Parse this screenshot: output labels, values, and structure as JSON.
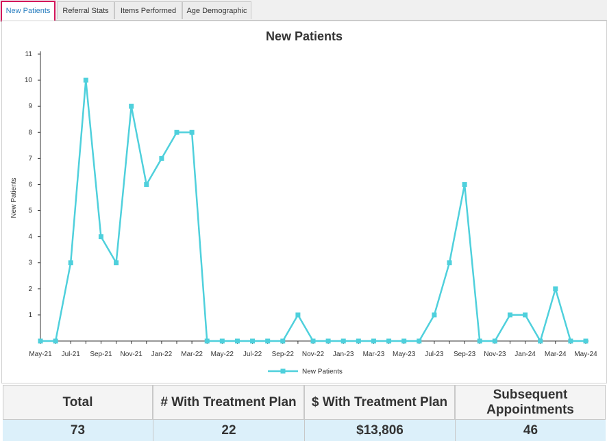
{
  "tabs": [
    {
      "label": "New Patients"
    },
    {
      "label": "Referral Stats"
    },
    {
      "label": "Items Performed"
    },
    {
      "label": "Age Demographic"
    }
  ],
  "chart_data": {
    "type": "line",
    "title": "New Patients",
    "ylabel": "New Patients",
    "xlabel": "",
    "ylim": [
      0,
      11
    ],
    "yticks": [
      1,
      2,
      3,
      4,
      5,
      6,
      7,
      8,
      9,
      10,
      11
    ],
    "x": [
      "May-21",
      "Jun-21",
      "Jul-21",
      "Aug-21",
      "Sep-21",
      "Oct-21",
      "Nov-21",
      "Dec-21",
      "Jan-22",
      "Feb-22",
      "Mar-22",
      "Apr-22",
      "May-22",
      "Jun-22",
      "Jul-22",
      "Aug-22",
      "Sep-22",
      "Oct-22",
      "Nov-22",
      "Dec-22",
      "Jan-23",
      "Feb-23",
      "Mar-23",
      "Apr-23",
      "May-23",
      "Jun-23",
      "Jul-23",
      "Aug-23",
      "Sep-23",
      "Oct-23",
      "Nov-23",
      "Dec-23",
      "Jan-24",
      "Feb-24",
      "Mar-24",
      "Apr-24",
      "May-24"
    ],
    "xtick_labels": [
      "May-21",
      "Jul-21",
      "Sep-21",
      "Nov-21",
      "Jan-22",
      "Mar-22",
      "May-22",
      "Jul-22",
      "Sep-22",
      "Nov-22",
      "Jan-23",
      "Mar-23",
      "May-23",
      "Jul-23",
      "Sep-23",
      "Nov-23",
      "Jan-24",
      "Mar-24",
      "May-24"
    ],
    "series": [
      {
        "name": "New Patients",
        "color": "#4fd0dc",
        "values": [
          0,
          0,
          3,
          10,
          4,
          3,
          9,
          6,
          7,
          8,
          8,
          0,
          0,
          0,
          0,
          0,
          0,
          1,
          0,
          0,
          0,
          0,
          0,
          0,
          0,
          0,
          1,
          3,
          6,
          0,
          0,
          1,
          1,
          0,
          2,
          0,
          0
        ]
      }
    ],
    "legend": "bottom-center",
    "grid": false
  },
  "summary": {
    "headers": [
      "Total",
      "# With Treatment Plan",
      "$ With Treatment Plan",
      "Subsequent Appointments"
    ],
    "values": [
      "73",
      "22",
      "$13,806",
      "46"
    ]
  }
}
